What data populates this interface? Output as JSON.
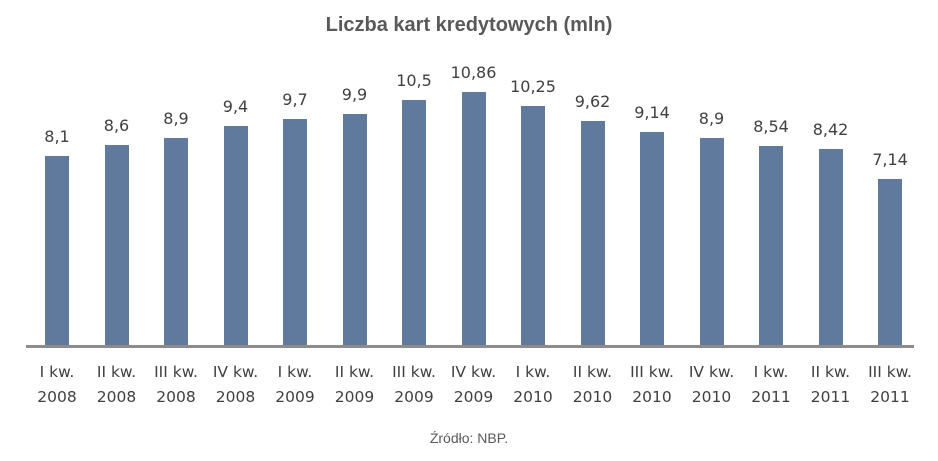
{
  "chart_data": {
    "type": "bar",
    "title": "Liczba kart kredytowych (mln)",
    "xlabel": "",
    "ylabel": "",
    "ylim": [
      0,
      11
    ],
    "grid": false,
    "legend": null,
    "categories": [
      "I kw. 2008",
      "II kw. 2008",
      "III kw. 2008",
      "IV kw. 2008",
      "I kw. 2009",
      "II kw. 2009",
      "III kw. 2009",
      "IV kw. 2009",
      "I kw. 2010",
      "II kw. 2010",
      "III kw. 2010",
      "IV kw. 2010",
      "I kw. 2011",
      "II kw. 2011",
      "III kw. 2011"
    ],
    "values": [
      8.1,
      8.6,
      8.9,
      9.4,
      9.7,
      9.9,
      10.5,
      10.86,
      10.25,
      9.62,
      9.14,
      8.9,
      8.54,
      8.42,
      7.14
    ],
    "value_labels": [
      "8,1",
      "8,6",
      "8,9",
      "9,4",
      "9,7",
      "9,9",
      "10,5",
      "10,86",
      "10,25",
      "9,62",
      "9,14",
      "8,9",
      "8,54",
      "8,42",
      "7,14"
    ],
    "tick_labels": [
      {
        "line1": "I kw.",
        "line2": "2008"
      },
      {
        "line1": "II kw.",
        "line2": "2008"
      },
      {
        "line1": "III kw.",
        "line2": "2008"
      },
      {
        "line1": "IV kw.",
        "line2": "2008"
      },
      {
        "line1": "I kw.",
        "line2": "2009"
      },
      {
        "line1": "II kw.",
        "line2": "2009"
      },
      {
        "line1": "III kw.",
        "line2": "2009"
      },
      {
        "line1": "IV kw.",
        "line2": "2009"
      },
      {
        "line1": "I kw.",
        "line2": "2010"
      },
      {
        "line1": "II kw.",
        "line2": "2010"
      },
      {
        "line1": "III kw.",
        "line2": "2010"
      },
      {
        "line1": "IV kw.",
        "line2": "2010"
      },
      {
        "line1": "I kw.",
        "line2": "2011"
      },
      {
        "line1": "II kw.",
        "line2": "2011"
      },
      {
        "line1": "III kw.",
        "line2": "2011"
      }
    ],
    "bar_color": "#5f7a9d",
    "annotations": [
      "Źródło: NBP."
    ]
  },
  "header": {
    "title": "Liczba kart kredytowych (mln)"
  },
  "footer": {
    "source": "Źródło: NBP."
  }
}
